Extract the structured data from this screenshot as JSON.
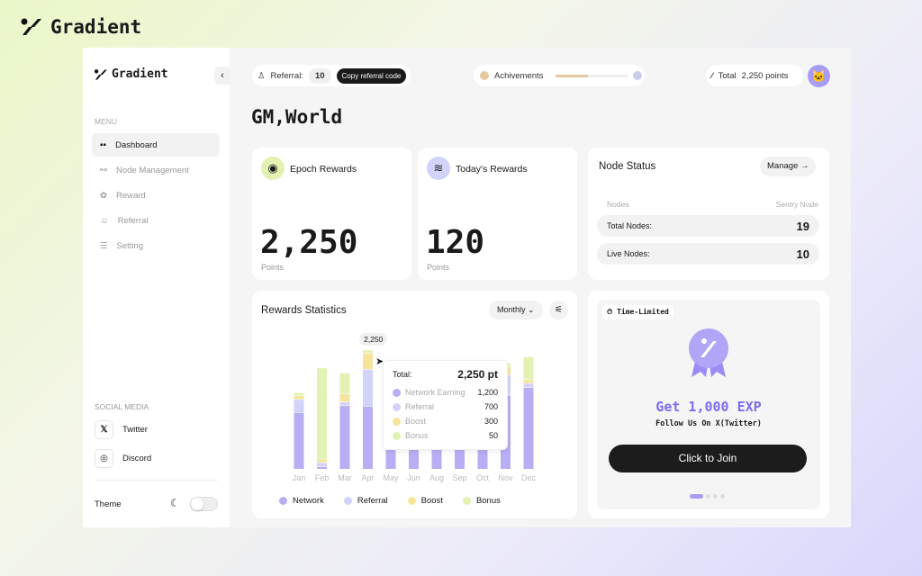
{
  "brand": {
    "name": "Gradient"
  },
  "sidebar": {
    "logo": "Gradient",
    "menu_label": "MENU",
    "items": [
      {
        "label": "Dashboard",
        "icon": "grid-icon",
        "active": true
      },
      {
        "label": "Node Management",
        "icon": "nodes-icon"
      },
      {
        "label": "Reward",
        "icon": "reward-icon"
      },
      {
        "label": "Referral",
        "icon": "users-icon"
      },
      {
        "label": "Setting",
        "icon": "sliders-icon"
      }
    ],
    "social_label": "SOCIAL MEDIA",
    "social": [
      {
        "label": "Twitter",
        "icon": "x-icon"
      },
      {
        "label": "Discord",
        "icon": "discord-icon"
      }
    ],
    "theme_label": "Theme"
  },
  "topbar": {
    "referral_label": "Referral:",
    "referral_count": "10",
    "copy_button": "Copy referral code",
    "achievements_label": "Achivements",
    "achievement_progress": 0.45,
    "total_label": "Total",
    "total_points": "2,250 points"
  },
  "greeting": "GM,World",
  "epoch": {
    "title": "Epoch Rewards",
    "value": "2,250",
    "unit": "Points"
  },
  "today": {
    "title": "Today's Rewards",
    "value": "120",
    "unit": "Points"
  },
  "node_status": {
    "title": "Node Status",
    "manage": "Manage",
    "col1": "Nodes",
    "col2": "Sentry Node",
    "rows": [
      {
        "label": "Total Nodes:",
        "value": "19"
      },
      {
        "label": "Live Nodes:",
        "value": "10"
      }
    ]
  },
  "stats": {
    "title": "Rewards Statistics",
    "period": "Monthly",
    "tooltip": {
      "total_label": "Total:",
      "total": "2,250 pt",
      "rows": [
        {
          "label": "Network Earning",
          "value": "1,200"
        },
        {
          "label": "Referral",
          "value": "700"
        },
        {
          "label": "Boost",
          "value": "300"
        },
        {
          "label": "Bonus",
          "value": "50"
        }
      ]
    },
    "hover_label": "2,250"
  },
  "chart_data": {
    "type": "bar",
    "stacked": true,
    "categories": [
      "Jan",
      "Feb",
      "Mar",
      "Apr",
      "May",
      "Jun",
      "Aug",
      "Sep",
      "Oct",
      "Nov",
      "Dec"
    ],
    "series": [
      {
        "name": "Network",
        "color": "#b7aef3",
        "values": [
          1080,
          35,
          1210,
          1200,
          900,
          850,
          900,
          950,
          1000,
          1410,
          1560
        ]
      },
      {
        "name": "Referral",
        "color": "#d3d3fa",
        "values": [
          240,
          70,
          60,
          700,
          0,
          0,
          0,
          0,
          0,
          380,
          70
        ]
      },
      {
        "name": "Boost",
        "color": "#f5e59a",
        "values": [
          60,
          60,
          145,
          300,
          0,
          0,
          0,
          0,
          0,
          150,
          60
        ]
      },
      {
        "name": "Bonus",
        "color": "#e3f2b3",
        "values": [
          50,
          1740,
          390,
          50,
          0,
          0,
          0,
          0,
          0,
          60,
          430
        ]
      }
    ],
    "ylim": [
      0,
      2250
    ],
    "grid": false,
    "legend": "bottom"
  },
  "promo": {
    "badge": "Time-Limited",
    "title": "Get 1,000 EXP",
    "subtitle": "Follow Us On X(Twitter)",
    "button": "Click to Join"
  }
}
